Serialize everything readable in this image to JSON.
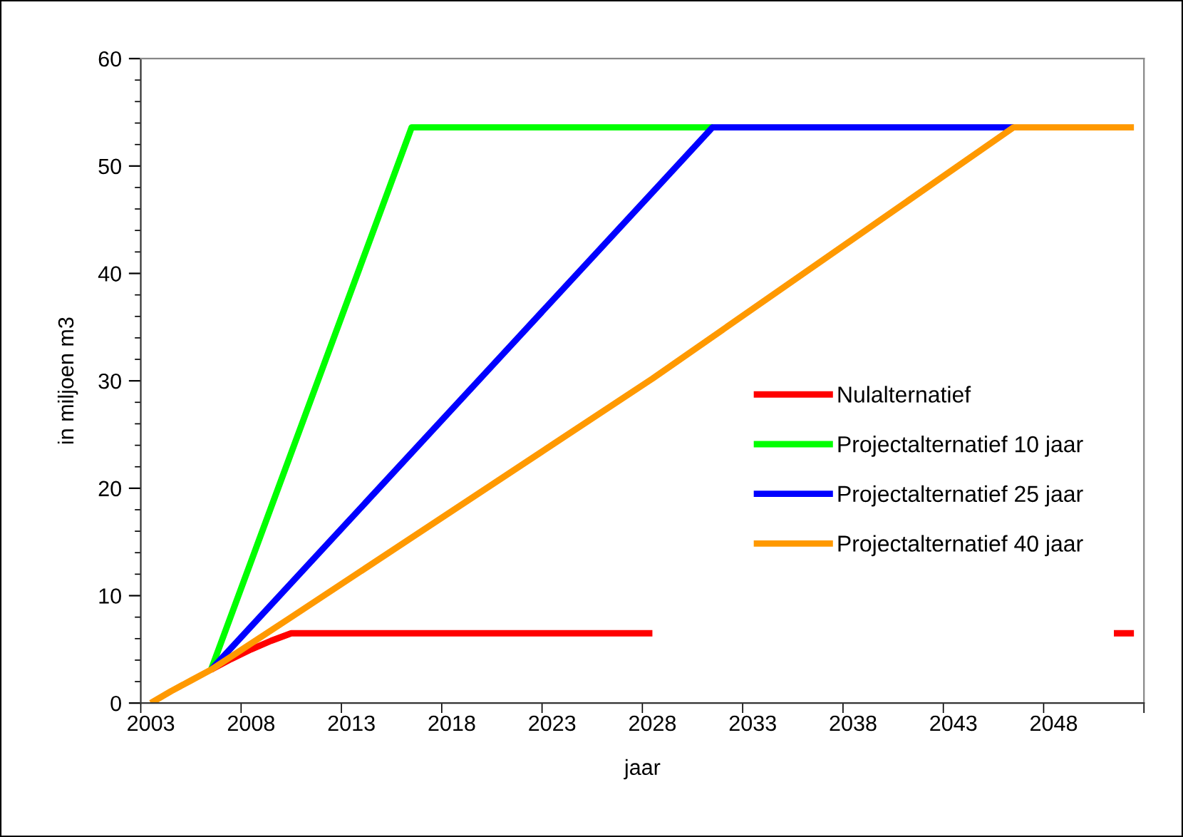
{
  "chart_data": {
    "type": "line",
    "xlabel": "jaar",
    "ylabel": "in miljoen m3",
    "xlim": [
      2002.5,
      2052.5
    ],
    "xticks": [
      {
        "value": 2002.5,
        "label": null
      },
      2003,
      {
        "value": 2007.5,
        "label": null
      },
      2008,
      {
        "value": 2012.5,
        "label": null
      },
      2013,
      {
        "value": 2017.5,
        "label": null
      },
      2018,
      {
        "value": 2022.5,
        "label": null
      },
      2023,
      {
        "value": 2027.5,
        "label": null
      },
      2028,
      {
        "value": 2032.5,
        "label": null
      },
      2033,
      {
        "value": 2037.5,
        "label": null
      },
      2038,
      {
        "value": 2042.5,
        "label": null
      },
      2043,
      {
        "value": 2047.5,
        "label": null
      },
      2048,
      {
        "value": 2052.5,
        "label": null
      }
    ],
    "ylim": [
      0,
      60
    ],
    "yticks": [
      0,
      {
        "value": 2,
        "label": null
      },
      {
        "value": 4,
        "label": null
      },
      {
        "value": 6,
        "label": null
      },
      {
        "value": 8,
        "label": null
      },
      10,
      {
        "value": 12,
        "label": null
      },
      {
        "value": 14,
        "label": null
      },
      {
        "value": 16,
        "label": null
      },
      {
        "value": 18,
        "label": null
      },
      20,
      {
        "value": 22,
        "label": null
      },
      {
        "value": 24,
        "label": null
      },
      {
        "value": 26,
        "label": null
      },
      {
        "value": 28,
        "label": null
      },
      30,
      {
        "value": 32,
        "label": null
      },
      {
        "value": 34,
        "label": null
      },
      {
        "value": 36,
        "label": null
      },
      {
        "value": 38,
        "label": null
      },
      40,
      {
        "value": 42,
        "label": null
      },
      {
        "value": 44,
        "label": null
      },
      {
        "value": 46,
        "label": null
      },
      {
        "value": 48,
        "label": null
      },
      50,
      {
        "value": 52,
        "label": null
      },
      {
        "value": 54,
        "label": null
      },
      {
        "value": 56,
        "label": null
      },
      {
        "value": 58,
        "label": null
      },
      60
    ],
    "grid": false,
    "legend": "right",
    "marker": "none",
    "line_style": "solid",
    "series": [
      {
        "name": "Nulalternatief",
        "color": "#ff0000",
        "x": [
          2006,
          2007,
          2008,
          2009,
          2010,
          2028,
          2029,
          2051,
          2052
        ],
        "values": [
          3.1,
          4.1,
          5.0,
          5.8,
          6.5,
          6.5,
          null,
          6.5,
          6.5
        ]
      },
      {
        "name": "Projectalternatief 10 jaar",
        "color": "#00ff00",
        "x": [
          2006,
          2016,
          2031
        ],
        "values": [
          3.1,
          53.6,
          53.6
        ]
      },
      {
        "name": "Projectalternatief 25 jaar",
        "color": "#0000ff",
        "x": [
          2006,
          2031,
          2046
        ],
        "values": [
          3.1,
          53.6,
          53.6
        ]
      },
      {
        "name": "Projectalternatief 40 jaar",
        "color": "#ff9900",
        "x": [
          2003,
          2004,
          2005,
          2006,
          2010,
          2028,
          2046,
          2052
        ],
        "values": [
          0,
          1.1,
          2.1,
          3.1,
          8.0,
          30.2,
          53.6,
          53.6
        ]
      }
    ]
  }
}
